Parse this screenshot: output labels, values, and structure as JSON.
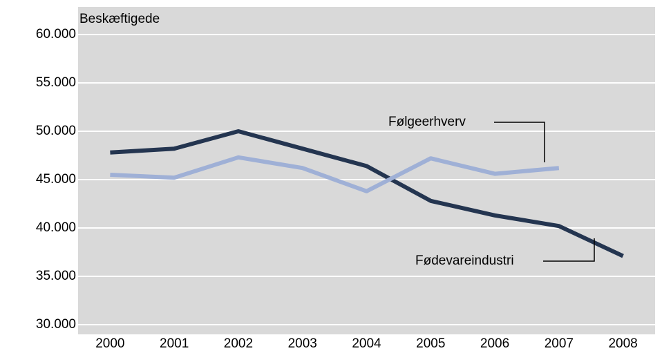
{
  "chart_data": {
    "type": "line",
    "y_label": "Beskæftigede",
    "categories": [
      "2000",
      "2001",
      "2002",
      "2003",
      "2004",
      "2005",
      "2006",
      "2007",
      "2008"
    ],
    "series": [
      {
        "name": "Fødevareindustri",
        "color": "#243550",
        "values": [
          47800,
          48200,
          50000,
          48200,
          46400,
          42800,
          41300,
          40200,
          37100
        ]
      },
      {
        "name": "Følgeerhverv",
        "color": "#9fb0d6",
        "values": [
          45500,
          45200,
          47300,
          46200,
          43800,
          47200,
          45600,
          46200,
          null
        ]
      }
    ],
    "ylim": [
      30000,
      60000
    ],
    "yticks": [
      {
        "value": 30000,
        "label": "30.000"
      },
      {
        "value": 35000,
        "label": "35.000"
      },
      {
        "value": 40000,
        "label": "40.000"
      },
      {
        "value": 45000,
        "label": "45.000"
      },
      {
        "value": 50000,
        "label": "50.000"
      },
      {
        "value": 55000,
        "label": "55.000"
      },
      {
        "value": 60000,
        "label": "60.000"
      }
    ],
    "grid": true,
    "plot_background": "#d9d9d9"
  }
}
